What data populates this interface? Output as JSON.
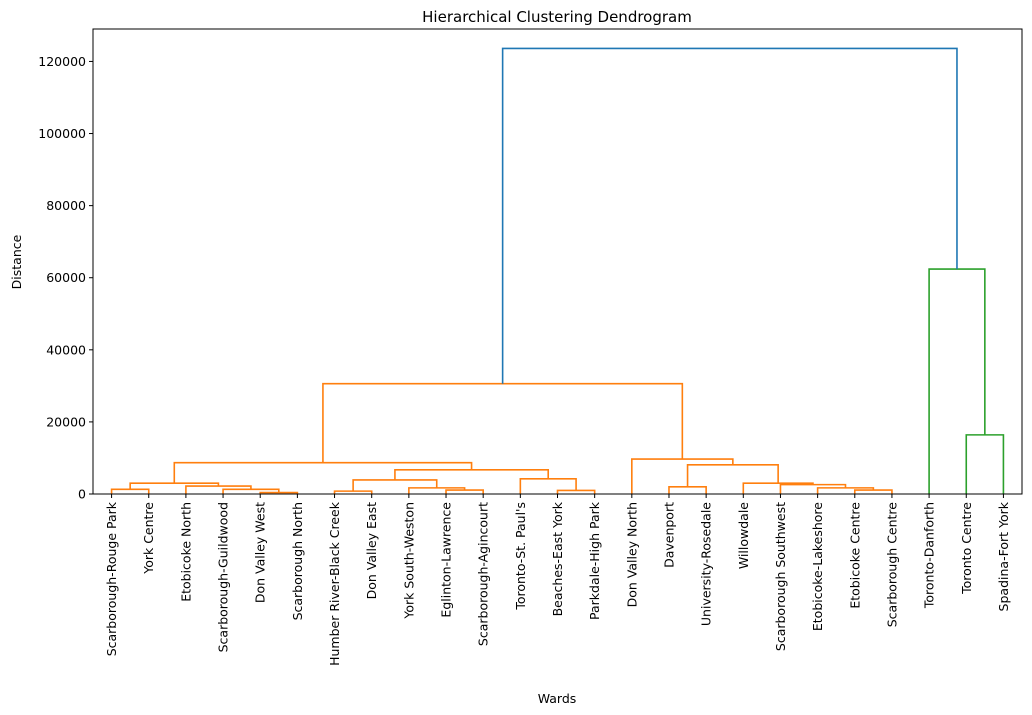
{
  "chart_data": {
    "type": "dendrogram",
    "title": "Hierarchical Clustering Dendrogram",
    "xlabel": "Wards",
    "ylabel": "Distance",
    "ylim": [
      0,
      129000
    ],
    "yticks": [
      0,
      20000,
      40000,
      60000,
      80000,
      100000,
      120000
    ],
    "grid": false,
    "leaves": [
      "Scarborough-Rouge Park",
      "York Centre",
      "Etobicoke North",
      "Scarborough-Guildwood",
      "Don Valley West",
      "Scarborough North",
      "Humber River-Black Creek",
      "Don Valley East",
      "York South-Weston",
      "Eglinton-Lawrence",
      "Scarborough-Agincourt",
      "Toronto-St. Paul's",
      "Beaches-East York",
      "Parkdale-High Park",
      "Don Valley North",
      "Davenport",
      "University-Rosedale",
      "Willowdale",
      "Scarborough Southwest",
      "Etobicoke-Lakeshore",
      "Etobicoke Centre",
      "Scarborough Centre",
      "Toronto-Danforth",
      "Toronto Centre",
      "Spadina-Fort York"
    ],
    "merges": [
      {
        "left": "L0",
        "right": "L1",
        "height": 1300,
        "color": "#ff7f0e"
      },
      {
        "left": "L4",
        "right": "L5",
        "height": 400,
        "color": "#ff7f0e"
      },
      {
        "left": "L3",
        "right": "M1",
        "height": 1300,
        "color": "#ff7f0e"
      },
      {
        "left": "L2",
        "right": "M2",
        "height": 2200,
        "color": "#ff7f0e"
      },
      {
        "left": "M0",
        "right": "M3",
        "height": 3000,
        "color": "#ff7f0e"
      },
      {
        "left": "L6",
        "right": "L7",
        "height": 800,
        "color": "#ff7f0e"
      },
      {
        "left": "L9",
        "right": "L10",
        "height": 1100,
        "color": "#ff7f0e"
      },
      {
        "left": "L8",
        "right": "M6",
        "height": 1700,
        "color": "#ff7f0e"
      },
      {
        "left": "M5",
        "right": "M7",
        "height": 3900,
        "color": "#ff7f0e"
      },
      {
        "left": "L12",
        "right": "L13",
        "height": 1000,
        "color": "#ff7f0e"
      },
      {
        "left": "L11",
        "right": "M9",
        "height": 4200,
        "color": "#ff7f0e"
      },
      {
        "left": "M8",
        "right": "M10",
        "height": 6700,
        "color": "#ff7f0e"
      },
      {
        "left": "M4",
        "right": "M11",
        "height": 8700,
        "color": "#ff7f0e"
      },
      {
        "left": "L15",
        "right": "L16",
        "height": 2000,
        "color": "#ff7f0e"
      },
      {
        "left": "L20",
        "right": "L21",
        "height": 1100,
        "color": "#ff7f0e"
      },
      {
        "left": "L19",
        "right": "M14",
        "height": 1700,
        "color": "#ff7f0e"
      },
      {
        "left": "L18",
        "right": "M15",
        "height": 2600,
        "color": "#ff7f0e"
      },
      {
        "left": "L17",
        "right": "M16",
        "height": 3000,
        "color": "#ff7f0e"
      },
      {
        "left": "M13",
        "right": "M17",
        "height": 8100,
        "color": "#ff7f0e"
      },
      {
        "left": "L14",
        "right": "M18",
        "height": 9700,
        "color": "#ff7f0e"
      },
      {
        "left": "M12",
        "right": "M19",
        "height": 30600,
        "color": "#ff7f0e"
      },
      {
        "left": "L23",
        "right": "L24",
        "height": 16400,
        "color": "#2ca02c"
      },
      {
        "left": "L22",
        "right": "M21",
        "height": 62400,
        "color": "#2ca02c"
      },
      {
        "left": "M20",
        "right": "M22",
        "height": 123600,
        "color": "#1f77b4"
      }
    ]
  }
}
